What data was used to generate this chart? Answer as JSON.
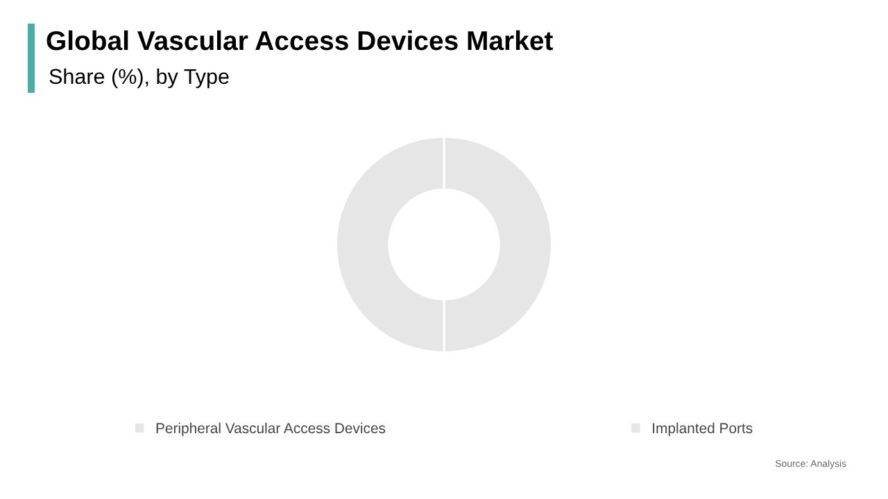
{
  "chart_data": {
    "type": "donut",
    "title": "Global Vascular Access Devices Market",
    "subtitle": "Share (%), by Type",
    "categories": [
      "Peripheral Vascular Access Devices",
      "Implanted Ports"
    ],
    "values": [
      50,
      50
    ],
    "colors": [
      "#e6e6e6",
      "#e6e6e6"
    ],
    "legend": "bottom",
    "annotations": [
      "Source: Analysis"
    ]
  }
}
